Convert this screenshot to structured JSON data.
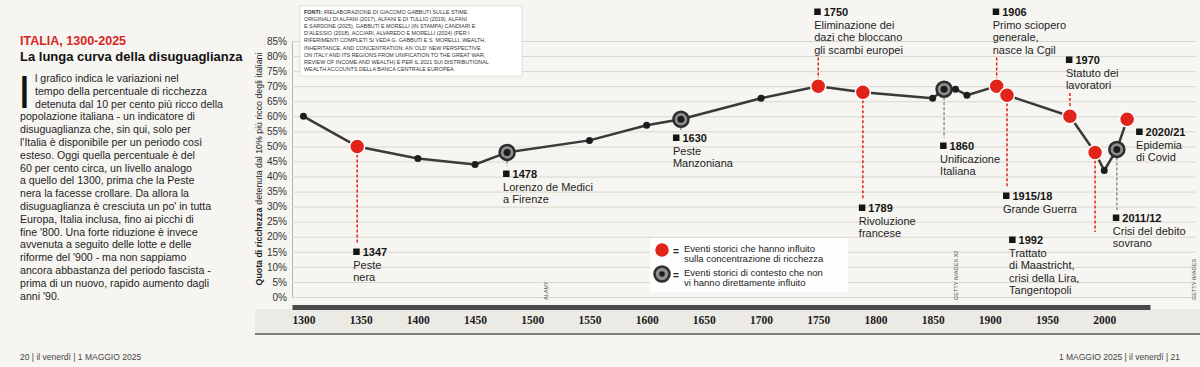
{
  "chart_data": {
    "type": "line",
    "title": "ITALIA, 1300-2025",
    "subtitle": "La lunga curva della disuguaglianza",
    "intro": {
      "drop_cap": "I",
      "lines": [
        "l grafico indica le variazioni nel",
        "tempo della percentuale di ricchezza",
        "detenuta dal 10 per cento più ricco della",
        "popolazione italiana - un indicatore di",
        "disuguaglianza che, sin qui, solo per",
        "l'Italia è disponibile per un periodo così",
        "esteso. Oggi quella percentuale è del",
        "60 per cento circa, un livello analogo",
        "a quello del 1300, prima che la Peste",
        "nera la facesse crollare. Da allora la",
        "disuguaglianza è cresciuta un po' in tutta",
        "Europa, Italia inclusa, fino ai picchi di",
        "fine '800. Una forte riduzione è invece",
        "avvenuta a seguito delle lotte e delle",
        "riforme del '900 - ma non sappiamo",
        "ancora abbastanza del periodo fascista -",
        "prima di un nuovo, rapido aumento dagli",
        "anni '90."
      ]
    },
    "ylabel_bold": "Quota di ricchezza",
    "ylabel": "detenuta dal 10% più ricco degli italiani",
    "sources_label": "FONTI:",
    "sources": [
      "RIELABORAZIONE DI GIACOMO GABBUTI SULLE STIME",
      "ORIGINALI DI ALFANI (2017), ALFANI E DI TULLIO (2019), ALFANI",
      "E SARDONE (2025), GABBUTI E MORELLI (IN STAMPA) CANDIARI E",
      "D'ALESSIO (2018), ACCIARI, ALVAREDO E MORELLI (2024) (PER I",
      "RIFERIMENTI COMPLETI SI VEDA G. GABBUTI E S. MORELLI, WEALTH,",
      "INHERITANCE, AND CONCENTRATION: AN 'OLD' NEW PERSPECTIVE",
      "ON ITALY AND ITS REGIONS FROM UNIFICATION TO THE GREAT WAR,",
      "REVIEW OF INCOME AND WEALTH) E PER IL 2021 SUI DISTRIBUTIONAL",
      "WEALTH ACCOUNTS DELLA BANCA CENTRALE EUROPEA."
    ],
    "x": [
      1300,
      1347,
      1400,
      1450,
      1478,
      1550,
      1600,
      1630,
      1700,
      1750,
      1789,
      1850,
      1860,
      1870,
      1880,
      1906,
      1915,
      1970,
      1992,
      2000,
      2011,
      2020
    ],
    "values": [
      60,
      50,
      46,
      44,
      48,
      52,
      57,
      59,
      66,
      70,
      68,
      66,
      69,
      69,
      67,
      70,
      67,
      60,
      48,
      42,
      49,
      59
    ],
    "color": "#3a3a3a",
    "marker": "circle",
    "line_style": "solid",
    "grid": true,
    "xlim": [
      1290,
      2040
    ],
    "xticks": [
      1300,
      1350,
      1400,
      1450,
      1500,
      1550,
      1600,
      1650,
      1700,
      1750,
      1800,
      1850,
      1900,
      1950,
      2000
    ],
    "ylim": [
      0,
      85
    ],
    "yticks": [
      {
        "value": 0,
        "label": "0%"
      },
      {
        "value": 5,
        "label": "5%"
      },
      {
        "value": 10,
        "label": "10%"
      },
      {
        "value": 15,
        "label": "15%"
      },
      {
        "value": 20,
        "label": "20%"
      },
      {
        "value": 25,
        "label": "25%"
      },
      {
        "value": 30,
        "label": "30%"
      },
      {
        "value": 35,
        "label": "35%"
      },
      {
        "value": 40,
        "label": "40%"
      },
      {
        "value": 45,
        "label": "45%"
      },
      {
        "value": 50,
        "label": "50%"
      },
      {
        "value": 55,
        "label": "55%"
      },
      {
        "value": 60,
        "label": "60%"
      },
      {
        "value": 65,
        "label": "65%"
      },
      {
        "value": 70,
        "label": "70%"
      },
      {
        "value": 75,
        "label": "75%"
      },
      {
        "value": 80,
        "label": "80%"
      },
      {
        "value": 85,
        "label": "85%"
      }
    ],
    "annotations": [
      {
        "x": 1347,
        "label": "1347",
        "text": [
          "Peste",
          "nera"
        ],
        "color": "#e2231a"
      },
      {
        "x": 1478,
        "label": "1478",
        "text": [
          "Lorenzo de Medici",
          "a Firenze"
        ],
        "color": "#8f8f8f"
      },
      {
        "x": 1630,
        "label": "1630",
        "text": [
          "Peste",
          "Manzoniana"
        ],
        "color": "#8f8f8f"
      },
      {
        "x": 1750,
        "label": "1750",
        "text": [
          "Eliminazione dei",
          "dazi che bloccano",
          "gli scambi europei"
        ],
        "color": "#e2231a"
      },
      {
        "x": 1789,
        "label": "1789",
        "text": [
          "Rivoluzione",
          "francese"
        ],
        "color": "#e2231a"
      },
      {
        "x": 1860,
        "label": "1860",
        "text": [
          "Unificazione",
          "Italiana"
        ],
        "color": "#8f8f8f"
      },
      {
        "x": 1906,
        "label": "1906",
        "text": [
          "Primo sciopero",
          "generale,",
          "nasce la Cgil"
        ],
        "color": "#e2231a"
      },
      {
        "x": 1915,
        "label": "1915/18",
        "text": [
          "Grande Guerra"
        ],
        "color": "#e2231a"
      },
      {
        "x": 1970,
        "label": "1970",
        "text": [
          "Statuto dei",
          "lavoratori"
        ],
        "color": "#e2231a"
      },
      {
        "x": 1992,
        "label": "1992",
        "text": [
          "Trattato",
          "di Maastricht,",
          "crisi della Lira,",
          "Tangentopoli"
        ],
        "color": "#e2231a"
      },
      {
        "x": 2011,
        "label": "2011/12",
        "text": [
          "Crisi del debito",
          "sovrano"
        ],
        "color": "#8f8f8f"
      },
      {
        "x": 2020,
        "label": "2020/21",
        "text": [
          "Epidemia",
          "di Covid"
        ],
        "color": "#e2231a"
      }
    ],
    "legend_separator": "=",
    "legend_items": [
      {
        "color": "#e2231a",
        "label": [
          "Eventi storici che hanno influito",
          "sulla concentrazione di ricchezza"
        ]
      },
      {
        "color": "#8f8f8f",
        "label": [
          "Eventi storici di contesto che non",
          "vi hanno direttamente influito"
        ]
      }
    ],
    "credits": [
      "ALAMY",
      "GETTY IMAGES X2",
      "GETTY IMAGES"
    ],
    "footer": [
      "20 | il venerdì | 1 MAGGIO 2025",
      "1 MAGGIO 2025 | il venerdì | 21"
    ]
  }
}
